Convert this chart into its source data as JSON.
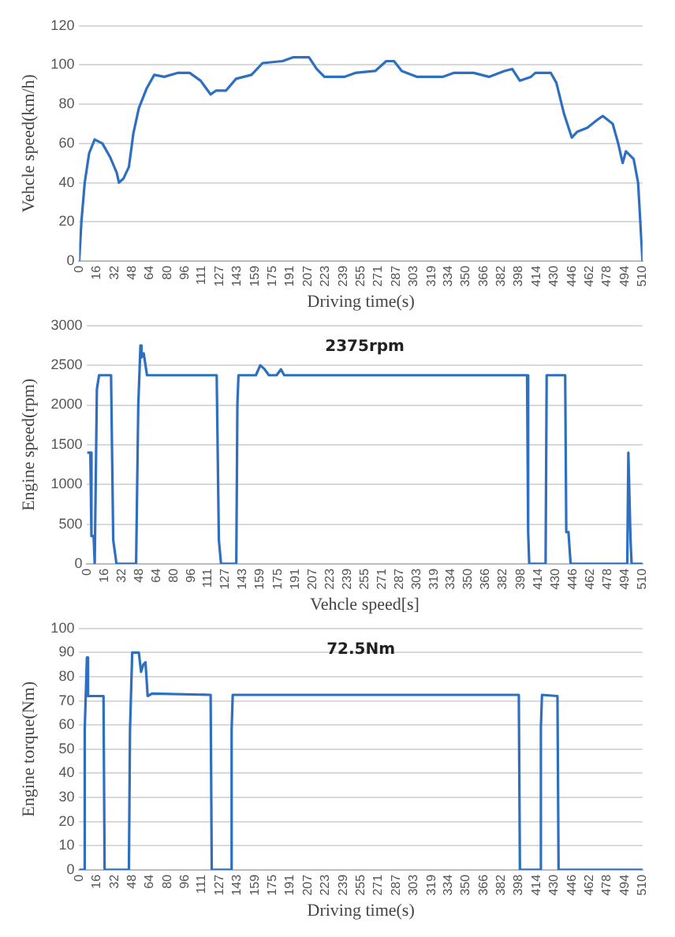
{
  "chart_data": [
    {
      "type": "line",
      "xlabel": "Driving time(s)",
      "ylabel": "Vehcle speed(km/h)",
      "color": "#2f6fbf",
      "grid": "y",
      "marker": "none",
      "line_style": "solid",
      "x": [
        0,
        2,
        5,
        9,
        14,
        21,
        28,
        34,
        36,
        40,
        45,
        49,
        54,
        61,
        68,
        77,
        89,
        100,
        110,
        119,
        124,
        133,
        142,
        156,
        166,
        184,
        194,
        208,
        215,
        222,
        240,
        250,
        268,
        278,
        285,
        292,
        306,
        329,
        339,
        357,
        371,
        385,
        392,
        399,
        409,
        413,
        427,
        432,
        439,
        446,
        451,
        460,
        469,
        474,
        483,
        488,
        492,
        495,
        502,
        506,
        510
      ],
      "values": [
        0,
        20,
        40,
        55,
        62,
        60,
        53,
        45,
        40,
        42,
        48,
        65,
        78,
        88,
        95,
        94,
        96,
        96,
        92,
        85,
        87,
        87,
        93,
        95,
        101,
        102,
        104,
        104,
        98,
        94,
        94,
        96,
        97,
        102,
        102,
        97,
        94,
        94,
        96,
        96,
        94,
        97,
        98,
        92,
        94,
        96,
        96,
        91,
        75,
        63,
        66,
        68,
        72,
        74,
        70,
        60,
        50,
        56,
        52,
        40,
        0
      ],
      "xlim": [
        0,
        510
      ],
      "xticks": [
        0,
        16,
        32,
        48,
        64,
        80,
        96,
        111,
        127,
        143,
        159,
        175,
        191,
        207,
        223,
        239,
        255,
        271,
        287,
        303,
        319,
        334,
        350,
        366,
        382,
        398,
        414,
        430,
        446,
        462,
        478,
        494,
        510
      ],
      "ylim": [
        0,
        120
      ],
      "yticks": [
        0,
        20,
        40,
        60,
        80,
        100,
        120
      ]
    },
    {
      "type": "line",
      "xlabel": "Vehcle speed[s]",
      "ylabel": "Engine speed(rpm)",
      "color": "#2f6fbf",
      "grid": "y",
      "marker": "none",
      "line_style": "solid",
      "annotations": [
        "2375rpm"
      ],
      "x": [
        0,
        3,
        4,
        6,
        7,
        9,
        11,
        22,
        24,
        27,
        45,
        47,
        49,
        50,
        52,
        55,
        119,
        121,
        123,
        137,
        138,
        139,
        155,
        159,
        163,
        167,
        174,
        178,
        181,
        404,
        405,
        406,
        421,
        422,
        439,
        440,
        442,
        444,
        496,
        497,
        499,
        500,
        510
      ],
      "values": [
        1400,
        1400,
        350,
        350,
        0,
        2200,
        2375,
        2375,
        300,
        0,
        0,
        2000,
        2750,
        2600,
        2650,
        2375,
        2375,
        300,
        0,
        0,
        2000,
        2375,
        2375,
        2500,
        2450,
        2375,
        2375,
        2450,
        2375,
        2375,
        400,
        0,
        0,
        2375,
        2375,
        400,
        400,
        0,
        0,
        1400,
        300,
        0,
        0
      ],
      "xlim": [
        0,
        510
      ],
      "xticks": [
        0,
        16,
        32,
        48,
        64,
        80,
        96,
        111,
        127,
        143,
        159,
        175,
        191,
        207,
        223,
        239,
        255,
        271,
        287,
        303,
        319,
        334,
        350,
        366,
        382,
        398,
        414,
        430,
        446,
        462,
        478,
        494,
        510
      ],
      "ylim": [
        0,
        3000
      ],
      "yticks": [
        0,
        500,
        1000,
        1500,
        2000,
        2500,
        3000
      ]
    },
    {
      "type": "line",
      "xlabel": "Driving time(s)",
      "ylabel": "Engine torque(Nm)",
      "color": "#2f6fbf",
      "grid": "y",
      "marker": "none",
      "line_style": "solid",
      "annotations": [
        "72.5Nm"
      ],
      "x": [
        0,
        4,
        5,
        7,
        8,
        22,
        23,
        45,
        46,
        48,
        54,
        56,
        58,
        60,
        62,
        66,
        119,
        120,
        137,
        138,
        139,
        398,
        399,
        417,
        418,
        419,
        433,
        434,
        510
      ],
      "values": [
        0,
        0,
        58,
        88,
        72,
        72,
        0,
        0,
        58,
        90,
        90,
        82,
        85,
        86,
        72,
        73,
        72.5,
        0,
        0,
        58,
        72.5,
        72.5,
        0,
        0,
        59,
        72.5,
        72,
        0,
        0
      ],
      "xlim": [
        0,
        510
      ],
      "xticks": [
        0,
        16,
        32,
        48,
        64,
        80,
        96,
        111,
        127,
        143,
        159,
        175,
        191,
        207,
        223,
        239,
        255,
        271,
        287,
        303,
        319,
        334,
        350,
        366,
        382,
        398,
        414,
        430,
        446,
        462,
        478,
        494,
        510
      ],
      "ylim": [
        0,
        100
      ],
      "yticks": [
        0,
        10,
        20,
        30,
        40,
        50,
        60,
        70,
        80,
        90,
        100
      ]
    }
  ]
}
